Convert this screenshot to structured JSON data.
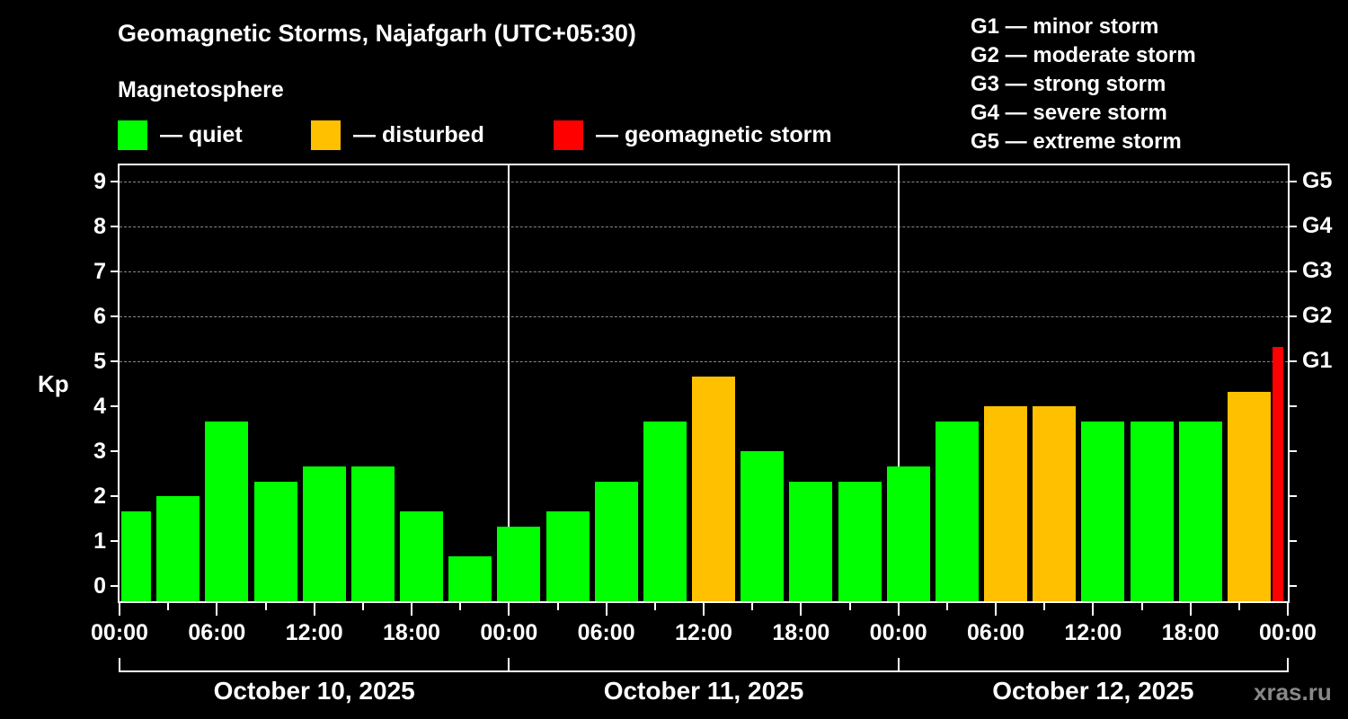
{
  "header": {
    "title": "Geomagnetic Storms, Najafgarh (UTC+05:30)",
    "subtitle": "Magnetosphere"
  },
  "legend": [
    {
      "label": "— quiet",
      "color": "#00ff00"
    },
    {
      "label": "— disturbed",
      "color": "#ffc000"
    },
    {
      "label": "— geomagnetic storm",
      "color": "#ff0000"
    }
  ],
  "storm_scale": [
    "G1 — minor storm",
    "G2 — moderate storm",
    "G3 — strong storm",
    "G4 — severe storm",
    "G5 — extreme storm"
  ],
  "axes": {
    "ylabel": "Kp",
    "yticks": [
      "0",
      "1",
      "2",
      "3",
      "4",
      "5",
      "6",
      "7",
      "8",
      "9"
    ],
    "gticks": [
      "G1",
      "G2",
      "G3",
      "G4",
      "G5"
    ],
    "xticks": [
      "00:00",
      "06:00",
      "12:00",
      "18:00",
      "00:00",
      "06:00",
      "12:00",
      "18:00",
      "00:00",
      "06:00",
      "12:00",
      "18:00",
      "00:00"
    ],
    "days": [
      "October 10, 2025",
      "October 11, 2025",
      "October 12, 2025"
    ]
  },
  "watermark": "xras.ru",
  "chart_data": {
    "type": "bar",
    "title": "Geomagnetic Storms, Najafgarh (UTC+05:30)",
    "subtitle": "Magnetosphere",
    "xlabel": "",
    "ylabel": "Kp",
    "ylim": [
      0,
      9
    ],
    "grid": "horizontal dashed at Kp 5-9",
    "legend_position": "top",
    "categories": [
      "Oct 10 00:00",
      "Oct 10 03:00",
      "Oct 10 06:00",
      "Oct 10 09:00",
      "Oct 10 12:00",
      "Oct 10 15:00",
      "Oct 10 18:00",
      "Oct 10 21:00",
      "Oct 11 00:00",
      "Oct 11 03:00",
      "Oct 11 06:00",
      "Oct 11 09:00",
      "Oct 11 12:00",
      "Oct 11 15:00",
      "Oct 11 18:00",
      "Oct 11 21:00",
      "Oct 12 00:00",
      "Oct 12 03:00",
      "Oct 12 06:00",
      "Oct 12 09:00",
      "Oct 12 12:00",
      "Oct 12 15:00",
      "Oct 12 18:00",
      "Oct 12 21:00",
      "Oct 12 23:00"
    ],
    "values": [
      1.67,
      2.0,
      3.67,
      2.33,
      2.67,
      2.67,
      1.67,
      0.67,
      1.33,
      1.67,
      2.33,
      3.67,
      4.67,
      3.0,
      2.33,
      2.33,
      2.67,
      3.67,
      4.0,
      4.0,
      3.67,
      3.67,
      3.67,
      4.33,
      5.33
    ],
    "status": [
      "quiet",
      "quiet",
      "quiet",
      "quiet",
      "quiet",
      "quiet",
      "quiet",
      "quiet",
      "quiet",
      "quiet",
      "quiet",
      "quiet",
      "disturbed",
      "quiet",
      "quiet",
      "quiet",
      "quiet",
      "quiet",
      "disturbed",
      "disturbed",
      "quiet",
      "quiet",
      "quiet",
      "disturbed",
      "storm"
    ],
    "colors": {
      "quiet": "#00ff00",
      "disturbed": "#ffc000",
      "storm": "#ff0000"
    },
    "secondary_axis": {
      "G1": 5,
      "G2": 6,
      "G3": 7,
      "G4": 8,
      "G5": 9
    }
  }
}
